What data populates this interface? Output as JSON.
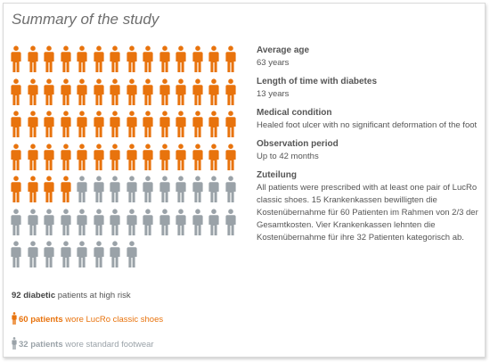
{
  "title": "Summary of the study",
  "colors": {
    "treated": "#e8730d",
    "standard": "#9aa2a8"
  },
  "chart_data": {
    "type": "pictogram",
    "total": 92,
    "per_row": 14,
    "series": [
      {
        "name": "wore LucRo classic shoes",
        "value": 60,
        "color": "#e8730d"
      },
      {
        "name": "wore standard footwear",
        "value": 32,
        "color": "#9aa2a8"
      }
    ]
  },
  "info": [
    {
      "label": "Average age",
      "value": "63 years"
    },
    {
      "label": "Length of time with diabetes",
      "value": "13 years"
    },
    {
      "label": "Medical condition",
      "value": "Healed foot ulcer with no significant deformation of the foot"
    },
    {
      "label": "Observation period",
      "value": "Up to 42 months"
    },
    {
      "label": "Zuteilung",
      "value": "All patients were prescribed with at least one pair of LucRo classic shoes. 15 Krankenkassen bewilligten die Kostenübernahme für 60 Patienten im Rahmen von 2/3 der Gesamtkosten. Vier Krankenkassen lehnten die Kostenübernahme für ihre 32 Patienten kategorisch ab."
    }
  ],
  "legend": {
    "total": {
      "strong": "92 diabetic",
      "rest": " patients at high risk"
    },
    "treated": {
      "icon": "person-icon",
      "strong": "60 patients",
      "rest": " wore LucRo classic shoes"
    },
    "standard": {
      "icon": "person-icon",
      "strong": "32 patients",
      "rest": " wore standard footwear"
    }
  }
}
